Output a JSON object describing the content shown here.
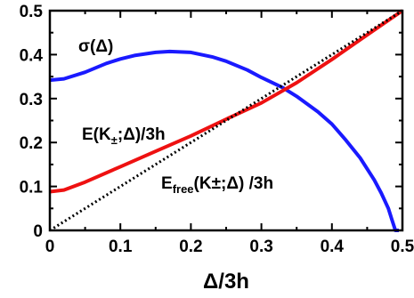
{
  "chart_data": {
    "type": "line",
    "title": "",
    "xlabel": "Δ/3h",
    "ylabel": "",
    "xlim": [
      0,
      0.5
    ],
    "ylim": [
      0,
      0.5
    ],
    "x_ticks": [
      0,
      0.1,
      0.2,
      0.3,
      0.4,
      0.5
    ],
    "x_tick_labels": [
      "0",
      "0.1",
      "0.2",
      "0.3",
      "0.4",
      "0.5"
    ],
    "y_ticks": [
      0,
      0.1,
      0.2,
      0.3,
      0.4,
      0.5
    ],
    "y_tick_labels": [
      "0",
      "0.1",
      "0.2",
      "0.3",
      "0.4",
      "0.5"
    ],
    "grid": false,
    "legend": "none",
    "series": [
      {
        "color": "#1a1aff",
        "style": "solid",
        "x": [
          0,
          0.02,
          0.05,
          0.08,
          0.1,
          0.12,
          0.15,
          0.17,
          0.2,
          0.23,
          0.25,
          0.28,
          0.3,
          0.33,
          0.35,
          0.38,
          0.4,
          0.42,
          0.44,
          0.46,
          0.47,
          0.48,
          0.485,
          0.49,
          0.495
        ],
        "y": [
          0.342,
          0.345,
          0.36,
          0.38,
          0.39,
          0.398,
          0.405,
          0.407,
          0.405,
          0.395,
          0.385,
          0.365,
          0.348,
          0.325,
          0.305,
          0.27,
          0.242,
          0.205,
          0.165,
          0.115,
          0.085,
          0.05,
          0.025,
          0.0,
          0.0
        ]
      },
      {
        "color": "#ee1111",
        "style": "solid",
        "x": [
          0,
          0.02,
          0.05,
          0.1,
          0.15,
          0.2,
          0.25,
          0.3,
          0.35,
          0.4,
          0.45,
          0.5
        ],
        "y": [
          0.088,
          0.092,
          0.11,
          0.145,
          0.18,
          0.215,
          0.253,
          0.29,
          0.336,
          0.389,
          0.445,
          0.5
        ]
      },
      {
        "color": "#000000",
        "style": "dotted",
        "x": [
          0,
          0.5
        ],
        "y": [
          0,
          0.5
        ]
      }
    ],
    "annotations": [
      {
        "text": "σ(Δ)",
        "sub": "",
        "rest": ""
      },
      {
        "text": "E(K",
        "sub": "±",
        "rest": ";Δ)/3h"
      },
      {
        "text": "E",
        "sub": "free",
        "rest": "(K±;Δ) /3h"
      }
    ]
  }
}
